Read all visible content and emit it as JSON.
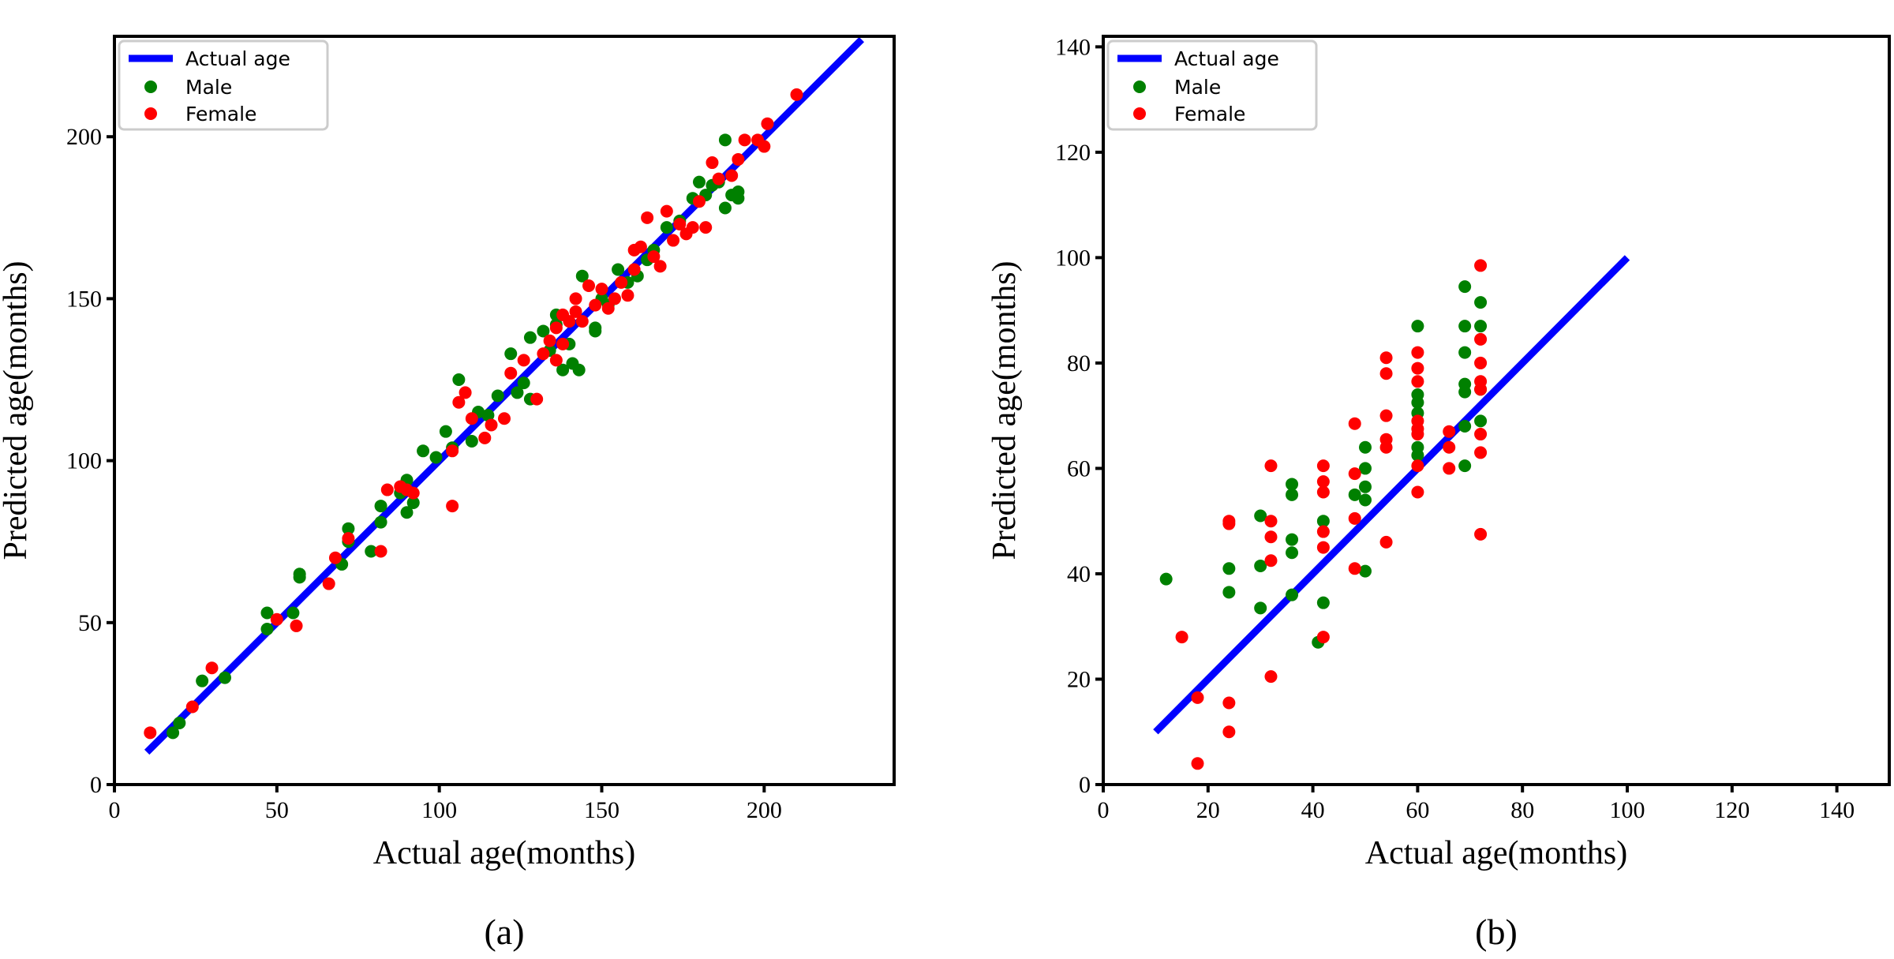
{
  "chart_data": [
    {
      "type": "scatter",
      "caption": "(a)",
      "xlabel": "Actual age(months)",
      "ylabel": "Predicted age(months)",
      "xlim": [
        0,
        240
      ],
      "ylim": [
        0,
        231
      ],
      "xticks": [
        "0",
        "50",
        "100",
        "150",
        "200"
      ],
      "yticks": [
        "0",
        "50",
        "100",
        "150",
        "200"
      ],
      "xtick_values": [
        0,
        50,
        100,
        150,
        200
      ],
      "ytick_values": [
        0,
        50,
        100,
        150,
        200
      ],
      "grid": false,
      "legend_position": "top-left",
      "line": {
        "name": "Actual age",
        "color": "#0000ff",
        "x": [
          10,
          230
        ],
        "y": [
          10,
          230
        ]
      },
      "series": [
        {
          "name": "Male",
          "color": "#008000",
          "points": [
            [
              18,
              16
            ],
            [
              20,
              19
            ],
            [
              27,
              32
            ],
            [
              34,
              33
            ],
            [
              47,
              48
            ],
            [
              47,
              53
            ],
            [
              55,
              53
            ],
            [
              57,
              64
            ],
            [
              57,
              65
            ],
            [
              70,
              68
            ],
            [
              72,
              79
            ],
            [
              72,
              75
            ],
            [
              79,
              72
            ],
            [
              82,
              81
            ],
            [
              82,
              86
            ],
            [
              88,
              90
            ],
            [
              90,
              94
            ],
            [
              90,
              84
            ],
            [
              95,
              103
            ],
            [
              92,
              87
            ],
            [
              99,
              101
            ],
            [
              102,
              109
            ],
            [
              104,
              104
            ],
            [
              106,
              125
            ],
            [
              110,
              106
            ],
            [
              112,
              115
            ],
            [
              115,
              114
            ],
            [
              118,
              120
            ],
            [
              122,
              133
            ],
            [
              124,
              121
            ],
            [
              126,
              124
            ],
            [
              128,
              138
            ],
            [
              128,
              119
            ],
            [
              132,
              140
            ],
            [
              134,
              134
            ],
            [
              136,
              145
            ],
            [
              136,
              142
            ],
            [
              138,
              128
            ],
            [
              140,
              136
            ],
            [
              141,
              130
            ],
            [
              143,
              128
            ],
            [
              144,
              157
            ],
            [
              148,
              141
            ],
            [
              148,
              140
            ],
            [
              150,
              150
            ],
            [
              152,
              148
            ],
            [
              155,
              159
            ],
            [
              158,
              155
            ],
            [
              161,
              157
            ],
            [
              164,
              162
            ],
            [
              166,
              165
            ],
            [
              170,
              172
            ],
            [
              174,
              174
            ],
            [
              178,
              181
            ],
            [
              180,
              186
            ],
            [
              182,
              182
            ],
            [
              184,
              185
            ],
            [
              188,
              199
            ],
            [
              188,
              178
            ],
            [
              190,
              182
            ],
            [
              192,
              181
            ],
            [
              192,
              183
            ],
            [
              186,
              186
            ]
          ]
        },
        {
          "name": "Female",
          "color": "#ff0000",
          "points": [
            [
              11,
              16
            ],
            [
              24,
              24
            ],
            [
              30,
              36
            ],
            [
              50,
              51
            ],
            [
              56,
              49
            ],
            [
              66,
              62
            ],
            [
              68,
              70
            ],
            [
              72,
              76
            ],
            [
              82,
              72
            ],
            [
              84,
              91
            ],
            [
              88,
              92
            ],
            [
              90,
              91
            ],
            [
              92,
              90
            ],
            [
              104,
              86
            ],
            [
              104,
              103
            ],
            [
              106,
              118
            ],
            [
              108,
              121
            ],
            [
              110,
              113
            ],
            [
              114,
              107
            ],
            [
              116,
              111
            ],
            [
              120,
              113
            ],
            [
              122,
              127
            ],
            [
              126,
              131
            ],
            [
              130,
              119
            ],
            [
              132,
              133
            ],
            [
              134,
              137
            ],
            [
              136,
              131
            ],
            [
              136,
              141
            ],
            [
              138,
              136
            ],
            [
              138,
              145
            ],
            [
              140,
              143
            ],
            [
              142,
              150
            ],
            [
              142,
              146
            ],
            [
              144,
              143
            ],
            [
              146,
              154
            ],
            [
              148,
              148
            ],
            [
              150,
              153
            ],
            [
              152,
              147
            ],
            [
              154,
              150
            ],
            [
              156,
              155
            ],
            [
              158,
              151
            ],
            [
              160,
              165
            ],
            [
              160,
              159
            ],
            [
              162,
              166
            ],
            [
              164,
              175
            ],
            [
              166,
              163
            ],
            [
              168,
              160
            ],
            [
              170,
              177
            ],
            [
              172,
              168
            ],
            [
              174,
              173
            ],
            [
              176,
              170
            ],
            [
              178,
              172
            ],
            [
              180,
              180
            ],
            [
              182,
              172
            ],
            [
              184,
              192
            ],
            [
              186,
              187
            ],
            [
              190,
              188
            ],
            [
              192,
              193
            ],
            [
              194,
              199
            ],
            [
              198,
              199
            ],
            [
              200,
              197
            ],
            [
              201,
              204
            ],
            [
              210,
              213
            ]
          ]
        }
      ]
    },
    {
      "type": "scatter",
      "caption": "(b)",
      "xlabel": "Actual age(months)",
      "ylabel": "Predicted age(months)",
      "xlim": [
        0,
        150
      ],
      "ylim": [
        0,
        142
      ],
      "xticks": [
        "0",
        "20",
        "40",
        "60",
        "80",
        "100",
        "120",
        "140"
      ],
      "yticks": [
        "0",
        "20",
        "40",
        "60",
        "80",
        "100",
        "120",
        "140"
      ],
      "xtick_values": [
        0,
        20,
        40,
        60,
        80,
        100,
        120,
        140
      ],
      "ytick_values": [
        0,
        20,
        40,
        60,
        80,
        100,
        120,
        140
      ],
      "grid": false,
      "legend_position": "top-left",
      "line": {
        "name": "Actual age",
        "color": "#0000ff",
        "x": [
          10,
          100
        ],
        "y": [
          10,
          100
        ]
      },
      "series": [
        {
          "name": "Male",
          "color": "#008000",
          "points": [
            [
              12,
              39
            ],
            [
              24,
              41
            ],
            [
              24,
              36.5
            ],
            [
              30,
              51
            ],
            [
              30,
              41.5
            ],
            [
              30,
              33.5
            ],
            [
              36,
              57
            ],
            [
              36,
              55
            ],
            [
              36,
              46.5
            ],
            [
              36,
              44
            ],
            [
              36,
              36
            ],
            [
              42,
              50
            ],
            [
              42,
              34.5
            ],
            [
              41,
              27
            ],
            [
              48,
              55
            ],
            [
              50,
              64
            ],
            [
              50,
              60
            ],
            [
              50,
              56.5
            ],
            [
              50,
              54
            ],
            [
              50,
              40.5
            ],
            [
              60,
              87
            ],
            [
              60,
              74
            ],
            [
              60,
              72.5
            ],
            [
              60,
              70.5
            ],
            [
              60,
              64
            ],
            [
              60,
              62.5
            ],
            [
              69,
              94.5
            ],
            [
              69,
              87
            ],
            [
              69,
              82
            ],
            [
              69,
              76
            ],
            [
              69,
              74.5
            ],
            [
              69,
              68
            ],
            [
              69,
              60.5
            ],
            [
              72,
              91.5
            ],
            [
              72,
              87
            ],
            [
              72,
              75
            ],
            [
              72,
              69
            ]
          ]
        },
        {
          "name": "Female",
          "color": "#ff0000",
          "points": [
            [
              15,
              28
            ],
            [
              18,
              16.5
            ],
            [
              18,
              4
            ],
            [
              24,
              50
            ],
            [
              24,
              49.5
            ],
            [
              24,
              15.5
            ],
            [
              24,
              10
            ],
            [
              32,
              60.5
            ],
            [
              32,
              50
            ],
            [
              32,
              47
            ],
            [
              32,
              42.5
            ],
            [
              32,
              20.5
            ],
            [
              42,
              60.5
            ],
            [
              42,
              57.5
            ],
            [
              42,
              55.5
            ],
            [
              42,
              48
            ],
            [
              42,
              45
            ],
            [
              42,
              28
            ],
            [
              48,
              68.5
            ],
            [
              48,
              59
            ],
            [
              48,
              50.5
            ],
            [
              48,
              41
            ],
            [
              54,
              81
            ],
            [
              54,
              78
            ],
            [
              54,
              70
            ],
            [
              54,
              65.5
            ],
            [
              54,
              64
            ],
            [
              54,
              46
            ],
            [
              60,
              82
            ],
            [
              60,
              79
            ],
            [
              60,
              76.5
            ],
            [
              60,
              69
            ],
            [
              60,
              67.5
            ],
            [
              60,
              66.5
            ],
            [
              60,
              60.5
            ],
            [
              60,
              55.5
            ],
            [
              66,
              67
            ],
            [
              66,
              64
            ],
            [
              66,
              60
            ],
            [
              72,
              98.5
            ],
            [
              72,
              84.5
            ],
            [
              72,
              80
            ],
            [
              72,
              76.5
            ],
            [
              72,
              75
            ],
            [
              72,
              66.5
            ],
            [
              72,
              63
            ],
            [
              72,
              47.5
            ]
          ]
        }
      ]
    }
  ]
}
